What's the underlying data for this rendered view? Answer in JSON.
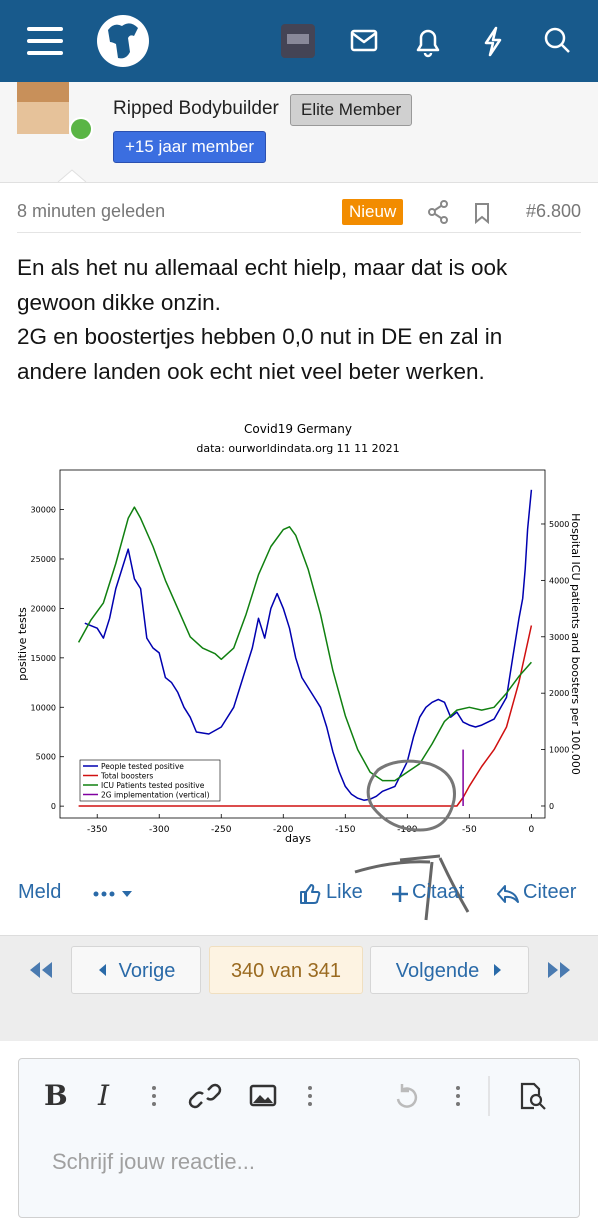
{
  "user": {
    "name": "Ripped Bodybuilder",
    "rank": "Elite Member",
    "badge": "+15 jaar member"
  },
  "post": {
    "time": "8 minuten geleden",
    "new": "Nieuw",
    "number": "#6.800",
    "paragraphs": [
      "En als het nu allemaal echt hielp, maar dat is ook gewoon dikke onzin.",
      "2G en boostertjes hebben 0,0 nut in DE en zal in andere landen ook echt niet veel beter werken."
    ]
  },
  "chart": {
    "type": "line",
    "title": "Covid19 Germany",
    "subtitle": "data: ourworldindata.org 11 11 2021",
    "xlabel": "days",
    "ylabel": "positive tests",
    "y2label": "Hospital ICU patients and boosters per 100.000",
    "xlim": [
      -380,
      11
    ],
    "xticks": [
      -350,
      -300,
      -250,
      -200,
      -150,
      -100,
      -50,
      0
    ],
    "ylim": [
      -1200,
      34000
    ],
    "yticks": [
      0,
      5000,
      10000,
      15000,
      20000,
      25000,
      30000
    ],
    "y2lim": [
      -213,
      5957
    ],
    "y2ticks": [
      0,
      1000,
      2000,
      3000,
      4000,
      5000
    ],
    "legend": "lower left",
    "series": [
      {
        "name": "People tested positive",
        "color": "#0000b0",
        "x": [
          -360,
          -350,
          -345,
          -340,
          -335,
          -330,
          -325,
          -320,
          -315,
          -310,
          -305,
          -300,
          -295,
          -290,
          -285,
          -280,
          -275,
          -270,
          -260,
          -250,
          -240,
          -235,
          -230,
          -225,
          -220,
          -215,
          -210,
          -205,
          -200,
          -195,
          -190,
          -185,
          -180,
          -175,
          -170,
          -165,
          -160,
          -155,
          -150,
          -145,
          -140,
          -135,
          -130,
          -125,
          -120,
          -110,
          -100,
          -95,
          -90,
          -85,
          -80,
          -75,
          -70,
          -65,
          -60,
          -55,
          -50,
          -45,
          -40,
          -30,
          -20,
          -15,
          -10,
          -7,
          -5,
          -3,
          0
        ],
        "values": [
          18500,
          18000,
          17000,
          19000,
          22000,
          24000,
          26000,
          23000,
          22000,
          17000,
          16000,
          15500,
          13000,
          12500,
          11500,
          10000,
          9000,
          7500,
          7300,
          8000,
          10000,
          12000,
          14000,
          16000,
          19000,
          17000,
          20000,
          21500,
          20000,
          18000,
          15000,
          13000,
          12000,
          11000,
          10000,
          8000,
          5500,
          3500,
          2000,
          1200,
          800,
          600,
          700,
          1000,
          1500,
          2000,
          4500,
          7000,
          9000,
          10000,
          10500,
          10800,
          10500,
          9000,
          9500,
          8500,
          8200,
          8000,
          8200,
          8800,
          11000,
          15000,
          19000,
          21000,
          24000,
          28000,
          32000
        ]
      },
      {
        "name": "Total boosters",
        "color": "#d01010",
        "axis": "y2",
        "x": [
          -365,
          -60,
          -55,
          -50,
          -40,
          -30,
          -20,
          -10,
          0
        ],
        "values": [
          0,
          0,
          150,
          350,
          700,
          1000,
          1400,
          2200,
          3200
        ]
      },
      {
        "name": "ICU Patients tested positive",
        "color": "#108010",
        "axis": "y2",
        "x": [
          -365,
          -355,
          -345,
          -335,
          -325,
          -320,
          -315,
          -305,
          -295,
          -285,
          -275,
          -265,
          -255,
          -250,
          -240,
          -230,
          -220,
          -210,
          -200,
          -195,
          -190,
          -180,
          -170,
          -160,
          -150,
          -140,
          -130,
          -120,
          -110,
          -100,
          -90,
          -80,
          -70,
          -60,
          -50,
          -40,
          -30,
          -20,
          -10,
          0
        ],
        "values": [
          2900,
          3300,
          3600,
          4300,
          5100,
          5300,
          5100,
          4600,
          4000,
          3500,
          3000,
          2800,
          2700,
          2600,
          2800,
          3400,
          4100,
          4600,
          4900,
          4950,
          4800,
          4200,
          3400,
          2400,
          1600,
          1000,
          600,
          450,
          450,
          600,
          750,
          1100,
          1500,
          1700,
          1750,
          1700,
          1750,
          2000,
          2300,
          2550
        ]
      },
      {
        "name": "2G implementation (vertical)",
        "color": "#8000a0",
        "axis": "y2",
        "x": [
          -55,
          -55
        ],
        "values": [
          0,
          1000
        ]
      }
    ]
  },
  "actions": {
    "report": "Meld",
    "like": "Like",
    "quote": "Citaat",
    "reply": "Citeer"
  },
  "pagination": {
    "prev": "Vorige",
    "page": "340 van 341",
    "next": "Volgende"
  },
  "editor": {
    "bold": "B",
    "italic": "I",
    "placeholder": "Schrijf jouw reactie..."
  }
}
